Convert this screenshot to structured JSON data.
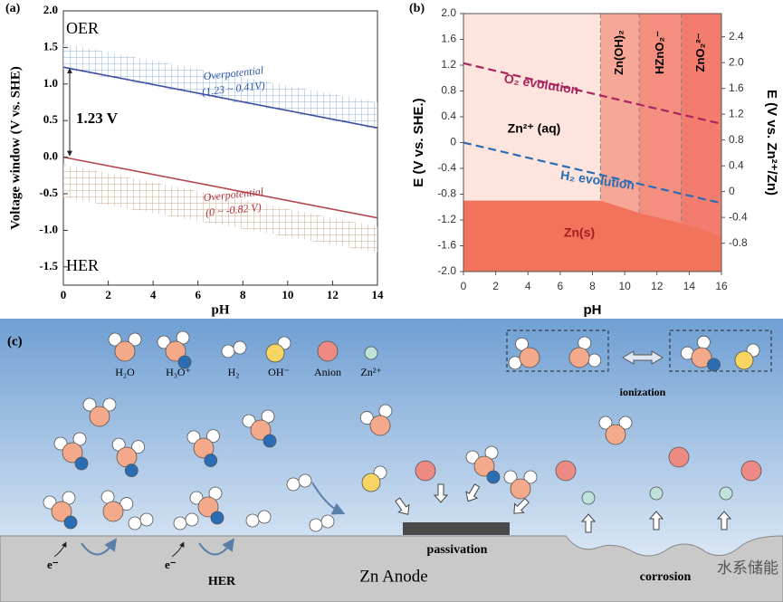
{
  "chart_data": [
    {
      "type": "line",
      "panel_label": "(a)",
      "x_label": "pH",
      "y_label": "Voltage window (V vs. SHE)",
      "x": [
        0,
        14
      ],
      "xlim": [
        0,
        14
      ],
      "xticks": [
        0,
        2,
        4,
        6,
        8,
        10,
        12,
        14
      ],
      "ylim": [
        -1.75,
        2.0
      ],
      "yticks": [
        -1.5,
        {
          "value": -1,
          "label": "-1.0"
        },
        -0.5,
        {
          "value": 0,
          "label": "0.0"
        },
        0.5,
        {
          "value": 1,
          "label": "1.0"
        },
        1.5,
        {
          "value": 2,
          "label": "2.0"
        }
      ],
      "series": [
        {
          "color": "#3f4fa0",
          "values": [
            1.23,
            0.4
          ]
        },
        {
          "color": "#b5474f",
          "values": [
            0,
            -0.83
          ]
        }
      ],
      "bands": [
        {
          "color": "#8fb3d9",
          "upper": [
            1.55,
            0.75
          ],
          "lower": [
            1.2,
            0.38
          ]
        },
        {
          "color": "#c9a98a",
          "upper": [
            -0.1,
            -0.95
          ],
          "lower": [
            -0.55,
            -1.3
          ]
        }
      ],
      "annotations": {
        "oer": "OER",
        "her": "HER",
        "gap": "1.23 V",
        "op1": "Overpotential",
        "op1_range": "(1.23 ~ 0.41V)",
        "op2": "Overpotential",
        "op2_range": "(0 ~ -0.82 V)"
      }
    },
    {
      "type": "line",
      "panel_label": "(b)",
      "x_label": "pH",
      "y_label": "E (V vs. SHE.)",
      "y2_label": "E (V vs. Zn²⁺/Zn)",
      "x": [
        0,
        16
      ],
      "xlim": [
        0,
        16
      ],
      "xticks": [
        0,
        2,
        4,
        6,
        8,
        10,
        12,
        14,
        16
      ],
      "ylim": [
        -2.0,
        2.0
      ],
      "yticks": [
        {
          "value": -2,
          "label": "-2.0"
        },
        -1.6,
        -1.2,
        -0.8,
        -0.4,
        0,
        0.4,
        0.8,
        1.2,
        1.6,
        {
          "value": 2,
          "label": "2.0"
        }
      ],
      "y2lim": [
        -1.24,
        2.76
      ],
      "y2ticks": [
        -0.8,
        -0.4,
        0,
        0.4,
        0.8,
        1.2,
        1.6,
        {
          "value": 2,
          "label": "2.0"
        },
        2.4
      ],
      "series": [
        {
          "name": "O₂ evolution",
          "color": "#a8255f",
          "values": [
            1.23,
            0.29
          ]
        },
        {
          "name": "H₂ evolution",
          "color": "#2a6db5",
          "values": [
            0,
            -0.94
          ]
        }
      ],
      "regions": [
        {
          "label": "Zn²⁺ (aq)",
          "x": [
            0,
            8.5
          ],
          "color": "#fde4dc"
        },
        {
          "label": "Zn(OH)₂",
          "x": [
            8.5,
            10.9
          ],
          "color": "#f7a797"
        },
        {
          "label": "HZnO₂⁻",
          "x": [
            10.9,
            13.5
          ],
          "color": "#f48f80"
        },
        {
          "label": "ZnO₂²⁻",
          "x": [
            13.5,
            16
          ],
          "color": "#f27c6d"
        }
      ],
      "solid_region": {
        "label": "Zn(s)",
        "color": "#f1735c",
        "x": [
          0,
          8.5,
          11,
          13.5,
          16
        ],
        "values": [
          -0.9,
          -0.9,
          -1.1,
          -1.25,
          -1.45
        ]
      }
    }
  ],
  "diagram": {
    "panel_label": "(c)",
    "legend": [
      "H₂O",
      "H₃O⁺",
      "H₂",
      "OH⁻",
      "Anion",
      "Zn²⁺"
    ],
    "ionization": "ionization",
    "passivation": "passivation",
    "electron_1": "e⁻",
    "electron_2": "e⁻",
    "her": "HER",
    "anode": "Zn Anode",
    "corrosion": "corrosion",
    "watermark": "水系储能"
  }
}
